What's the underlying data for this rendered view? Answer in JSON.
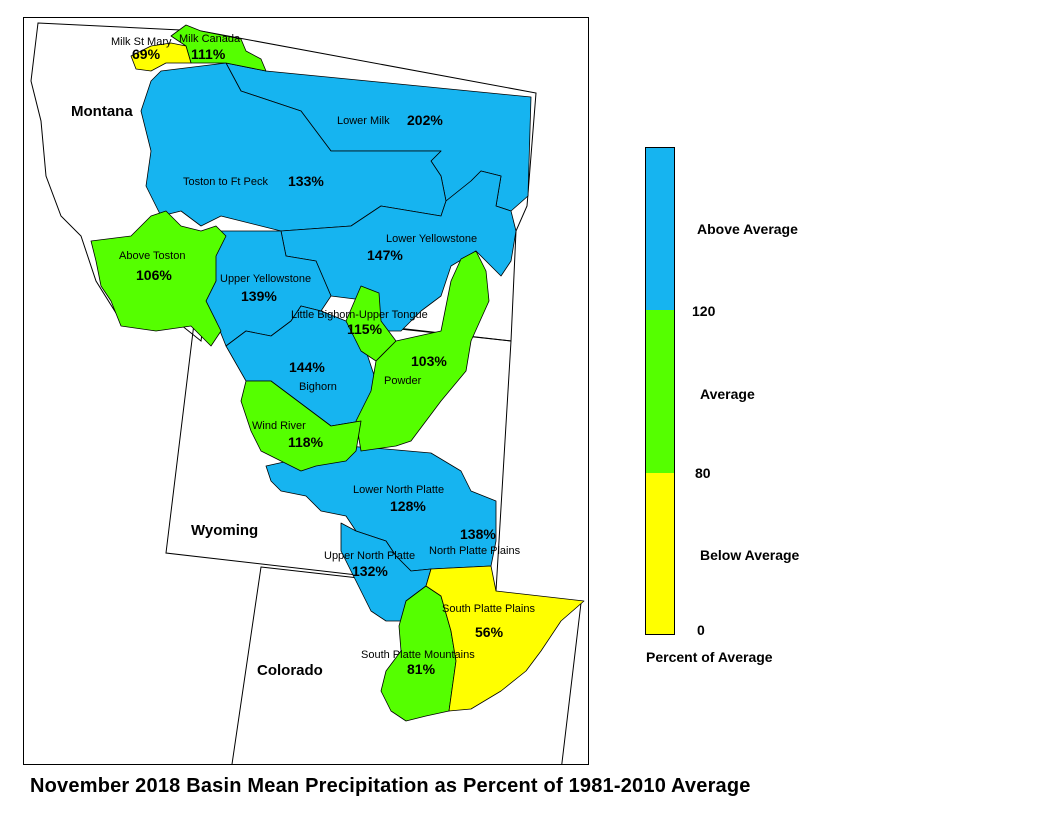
{
  "title": "November 2018 Basin Mean Precipitation as Percent of 1981-2010 Average",
  "colors": {
    "above": "#16b4f0",
    "average": "#55ff00",
    "below": "#ffff00",
    "background": "#ffffff",
    "outline": "#000000"
  },
  "states": {
    "montana": "Montana",
    "wyoming": "Wyoming",
    "colorado": "Colorado"
  },
  "basins": [
    {
      "name": "Milk St Mary",
      "pct": "69%",
      "category": "below"
    },
    {
      "name": "Milk Canada",
      "pct": "111%",
      "category": "average"
    },
    {
      "name": "Lower Milk",
      "pct": "202%",
      "category": "above"
    },
    {
      "name": "Toston to Ft Peck",
      "pct": "133%",
      "category": "above"
    },
    {
      "name": "Above Toston",
      "pct": "106%",
      "category": "average"
    },
    {
      "name": "Lower Yellowstone",
      "pct": "147%",
      "category": "above"
    },
    {
      "name": "Upper Yellowstone",
      "pct": "139%",
      "category": "above"
    },
    {
      "name": "Little Bighorn-Upper Tongue",
      "pct": "115%",
      "category": "average"
    },
    {
      "name": "Powder",
      "pct": "103%",
      "category": "average"
    },
    {
      "name": "Bighorn",
      "pct": "144%",
      "category": "above"
    },
    {
      "name": "Wind River",
      "pct": "118%",
      "category": "average"
    },
    {
      "name": "Lower North Platte",
      "pct": "128%",
      "category": "above"
    },
    {
      "name": "North Platte Plains",
      "pct": "138%",
      "category": "above"
    },
    {
      "name": "Upper North Platte",
      "pct": "132%",
      "category": "above"
    },
    {
      "name": "South Platte Plains",
      "pct": "56%",
      "category": "below"
    },
    {
      "name": "South Platte Mountains",
      "pct": "81%",
      "category": "average"
    }
  ],
  "legend": {
    "title": "Percent of Average",
    "categories": [
      {
        "label": "Above Average",
        "color": "#16b4f0",
        "from": 120
      },
      {
        "label": "Average",
        "color": "#55ff00",
        "from": 80,
        "to": 120
      },
      {
        "label": "Below Average",
        "color": "#ffff00",
        "from": 0,
        "to": 80
      }
    ],
    "ticks": [
      "120",
      "80",
      "0"
    ]
  }
}
